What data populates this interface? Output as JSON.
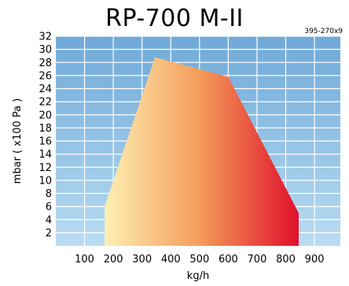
{
  "chart_data": {
    "type": "area",
    "title": "RP-700 M-II",
    "model_code": "395-270x9",
    "xlabel": "kg/h",
    "ylabel": "mbar ( x100 Pa )",
    "x_ticks": [
      100,
      200,
      300,
      400,
      500,
      600,
      700,
      800,
      900
    ],
    "y_ticks": [
      2,
      4,
      6,
      8,
      10,
      12,
      14,
      16,
      18,
      20,
      22,
      24,
      26,
      28,
      30,
      32
    ],
    "xlim": [
      0,
      990
    ],
    "ylim": [
      0,
      32
    ],
    "grid": true,
    "operating_range": {
      "x": [
        170,
        170,
        345,
        600,
        845,
        845
      ],
      "y": [
        0,
        6,
        28.8,
        25.8,
        5,
        0
      ]
    },
    "colors": {
      "background_top": "#6fa9d8",
      "background_bottom": "#b9dcf2",
      "gradient_low": "#fdf0b4",
      "gradient_mid": "#f49a59",
      "gradient_high": "#e0102b"
    }
  }
}
